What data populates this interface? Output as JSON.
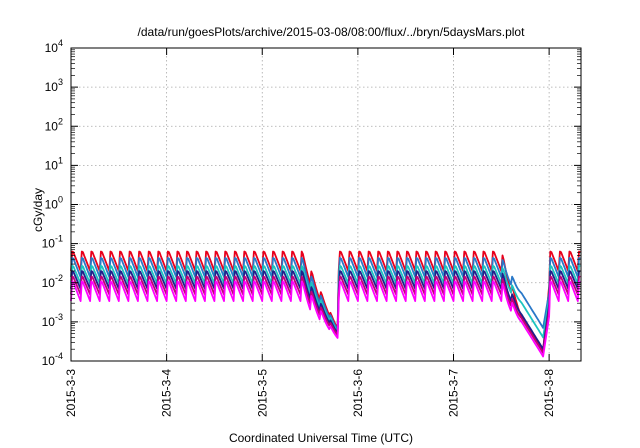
{
  "chart_data": {
    "type": "line",
    "title": "/data/run/goesPlots/archive/2015-03-08/08:00/flux/../bryn/5daysMars.plot",
    "xlabel": "Coordinated Universal Time (UTC)",
    "ylabel": "cGy/day",
    "y_scale": "log",
    "ylim": [
      0.0001,
      10000
    ],
    "xlim": [
      "2015-03-03 00:00",
      "2015-03-08 08:00"
    ],
    "grid": true,
    "y_ticks": [
      {
        "base": "10",
        "exp": "-4"
      },
      {
        "base": "10",
        "exp": "-3"
      },
      {
        "base": "10",
        "exp": "-2"
      },
      {
        "base": "10",
        "exp": "-1"
      },
      {
        "base": "10",
        "exp": "0"
      },
      {
        "base": "10",
        "exp": "1"
      },
      {
        "base": "10",
        "exp": "2"
      },
      {
        "base": "10",
        "exp": "3"
      },
      {
        "base": "10",
        "exp": "4"
      }
    ],
    "x_ticks": [
      "2015-3-3",
      "2015-3-4",
      "2015-3-5",
      "2015-3-6",
      "2015-3-7",
      "2015-3-8"
    ],
    "cycle_hours": 2.4,
    "series": [
      {
        "color": "#e8001c",
        "peak": 0.07,
        "trough": 0.02,
        "drop1": 0.00065,
        "drop2": 0.00018
      },
      {
        "color": "#2a78c8",
        "peak": 0.048,
        "trough": 0.014,
        "drop1": 0.0006,
        "drop2": 0.0007
      },
      {
        "color": "#1cc4c0",
        "peak": 0.03,
        "trough": 0.0095,
        "drop1": 0.00055,
        "drop2": 0.0004
      },
      {
        "color": "#20208c",
        "peak": 0.022,
        "trough": 0.007,
        "drop1": 0.0005,
        "drop2": 0.0002
      },
      {
        "color": "#c0007a",
        "peak": 0.016,
        "trough": 0.005,
        "drop1": 0.00045,
        "drop2": 0.00016
      },
      {
        "color": "#ff00ff",
        "peak": 0.012,
        "trough": 0.0034,
        "drop1": 0.00038,
        "drop2": 0.00013
      }
    ]
  }
}
